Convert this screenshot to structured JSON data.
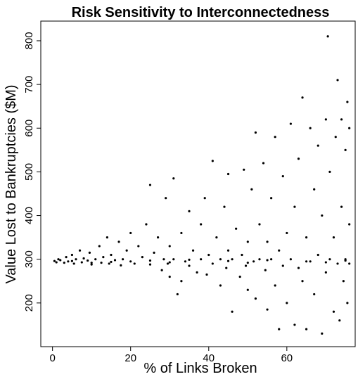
{
  "chart_data": {
    "type": "scatter",
    "title": "Risk Sensitivity to Interconnectedness",
    "x_label": "% of Links Broken",
    "y_label": "Value Lost to Bankruptcies ($M)",
    "color": "#000000",
    "xlim": [
      -3,
      77.5
    ],
    "ylim": [
      100,
      845
    ],
    "xticks": [
      0,
      20,
      40,
      60
    ],
    "yticks": [
      200,
      300,
      400,
      500,
      600,
      700,
      800
    ],
    "x": [
      0.5,
      1,
      1.5,
      2,
      3,
      3.5,
      4,
      5,
      5.5,
      6,
      7,
      7.5,
      8,
      9,
      9.5,
      10,
      11,
      12,
      12.5,
      13,
      14,
      14.5,
      15,
      16,
      17,
      17.5,
      18,
      19,
      20,
      20,
      21,
      22,
      23,
      24,
      25,
      25,
      26,
      27,
      28,
      28.5,
      29,
      29.5,
      30,
      30,
      31,
      31,
      32,
      33,
      33,
      34,
      35,
      35,
      36,
      37,
      38,
      38,
      39,
      39.5,
      40,
      41,
      41,
      42,
      43,
      43,
      44,
      44.5,
      45,
      45,
      46,
      46,
      47,
      48,
      48.5,
      49,
      49.5,
      50,
      50,
      51,
      51.5,
      52,
      52,
      53,
      53,
      54,
      54.5,
      55,
      55,
      56,
      56,
      57,
      57,
      58,
      58,
      59,
      59,
      60,
      60,
      61,
      61,
      62,
      62,
      63,
      63,
      64,
      64,
      65,
      65,
      66,
      66,
      67,
      67,
      68,
      68,
      69,
      69,
      70,
      70,
      70.5,
      71,
      71,
      72,
      72,
      72.5,
      73,
      73,
      73.5,
      74,
      74,
      74.5,
      75,
      75,
      75.5,
      75.5,
      76,
      76,
      76,
      5,
      15,
      25,
      35,
      45,
      55,
      65,
      75,
      10,
      30,
      50,
      70
    ],
    "values": [
      296,
      293,
      300,
      298,
      292,
      305,
      295,
      310,
      290,
      300,
      320,
      293,
      302,
      297,
      315,
      288,
      300,
      330,
      292,
      305,
      350,
      290,
      310,
      298,
      340,
      286,
      300,
      320,
      295,
      360,
      290,
      330,
      305,
      380,
      470,
      288,
      315,
      350,
      275,
      300,
      440,
      290,
      260,
      330,
      485,
      300,
      220,
      250,
      360,
      295,
      410,
      285,
      320,
      270,
      380,
      300,
      440,
      265,
      310,
      525,
      290,
      350,
      240,
      300,
      420,
      280,
      495,
      320,
      180,
      300,
      370,
      260,
      310,
      505,
      285,
      340,
      230,
      460,
      295,
      590,
      210,
      380,
      300,
      520,
      275,
      185,
      340,
      440,
      300,
      580,
      240,
      140,
      320,
      490,
      285,
      360,
      200,
      610,
      300,
      150,
      420,
      530,
      280,
      670,
      250,
      140,
      350,
      600,
      295,
      460,
      220,
      560,
      310,
      130,
      400,
      620,
      270,
      810,
      300,
      500,
      180,
      350,
      580,
      290,
      710,
      160,
      420,
      620,
      250,
      550,
      300,
      660,
      200,
      380,
      600,
      290,
      296,
      294,
      297,
      299,
      296,
      298,
      295,
      297,
      292,
      293,
      292,
      293
    ]
  }
}
